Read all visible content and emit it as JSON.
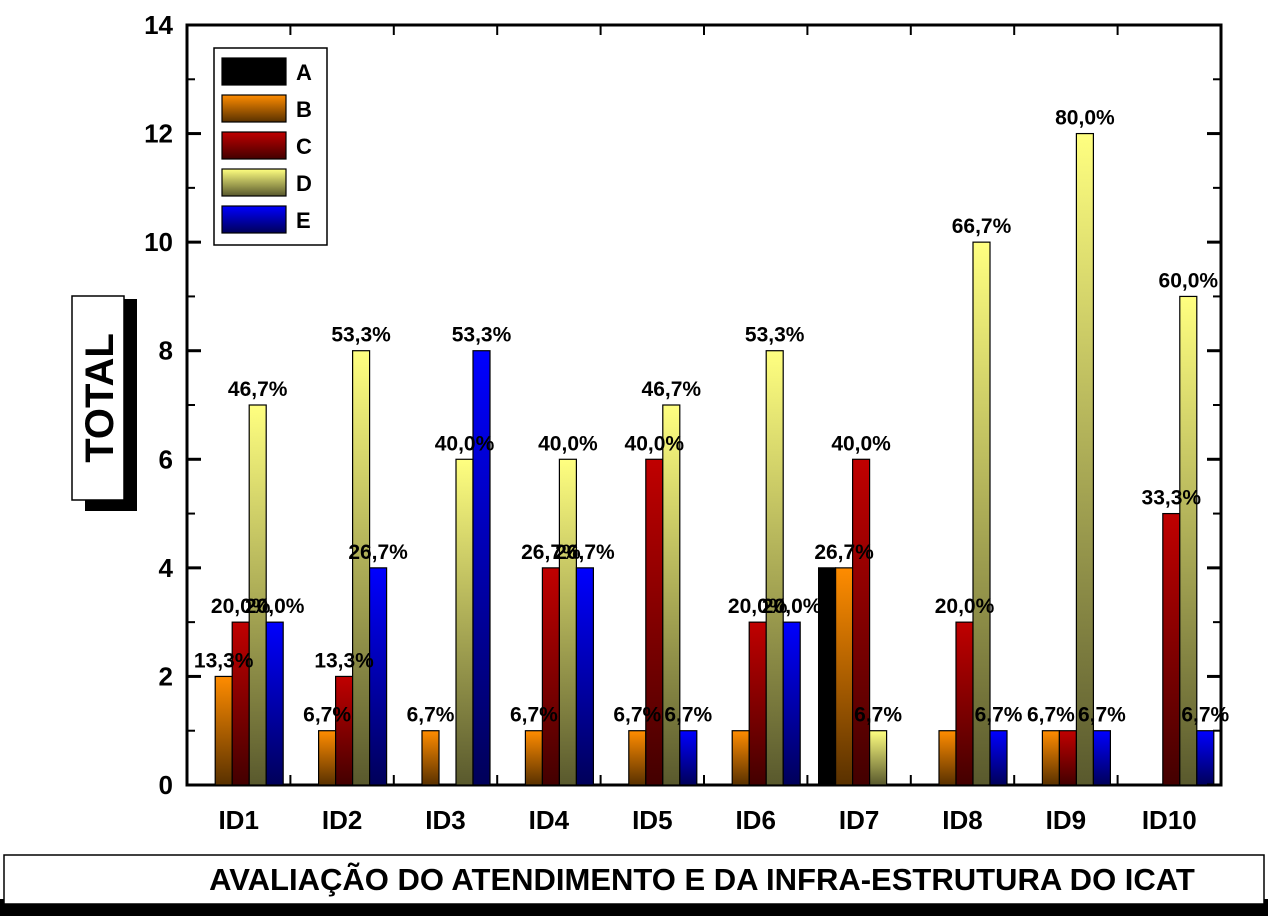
{
  "chart_data": {
    "type": "bar",
    "title": "",
    "xlabel": "AVALIAÇÃO DO ATENDIMENTO E DA INFRA-ESTRUTURA DO ICAT",
    "ylabel": "TOTAL",
    "ylim": [
      0,
      14
    ],
    "yticks": [
      0,
      2,
      4,
      6,
      8,
      10,
      12,
      14
    ],
    "grid": false,
    "legend_position": "top-left",
    "categories": [
      "ID1",
      "ID2",
      "ID3",
      "ID4",
      "ID5",
      "ID6",
      "ID7",
      "ID8",
      "ID9",
      "ID10"
    ],
    "series": [
      {
        "name": "A",
        "color": "#000000",
        "values": [
          0,
          0,
          0,
          0,
          0,
          0,
          4,
          0,
          0,
          0
        ],
        "labels": [
          "",
          "",
          "",
          "",
          "",
          "",
          "",
          "",
          "",
          ""
        ]
      },
      {
        "name": "B",
        "color": "#ff8c00",
        "values": [
          2,
          1,
          1,
          1,
          1,
          1,
          4,
          1,
          1,
          0
        ],
        "labels": [
          "13,3%",
          "6,7%",
          "6,7%",
          "6,7%",
          "6,7%",
          "",
          "26,7%",
          "",
          "6,7%",
          ""
        ]
      },
      {
        "name": "C",
        "color": "#c00000",
        "values": [
          3,
          2,
          0,
          4,
          6,
          3,
          6,
          3,
          1,
          5
        ],
        "labels": [
          "20,0%",
          "13,3%",
          "",
          "26,7%",
          "40,0%",
          "20,0%",
          "40,0%",
          "20,0%",
          "",
          "33,3%"
        ]
      },
      {
        "name": "D",
        "color": "#ffff80",
        "values": [
          7,
          8,
          6,
          6,
          7,
          8,
          1,
          10,
          12,
          9
        ],
        "labels": [
          "46,7%",
          "53,3%",
          "40,0%",
          "40,0%",
          "46,7%",
          "53,3%",
          "6,7%",
          "66,7%",
          "80,0%",
          "60,0%"
        ]
      },
      {
        "name": "E",
        "color": "#0000ff",
        "values": [
          3,
          4,
          8,
          4,
          1,
          3,
          0,
          1,
          1,
          1
        ],
        "labels": [
          "20,0%",
          "26,7%",
          "53,3%",
          "26,7%",
          "6,7%",
          "20,0%",
          "",
          "6,7%",
          "6,7%",
          "6,7%"
        ]
      }
    ]
  }
}
